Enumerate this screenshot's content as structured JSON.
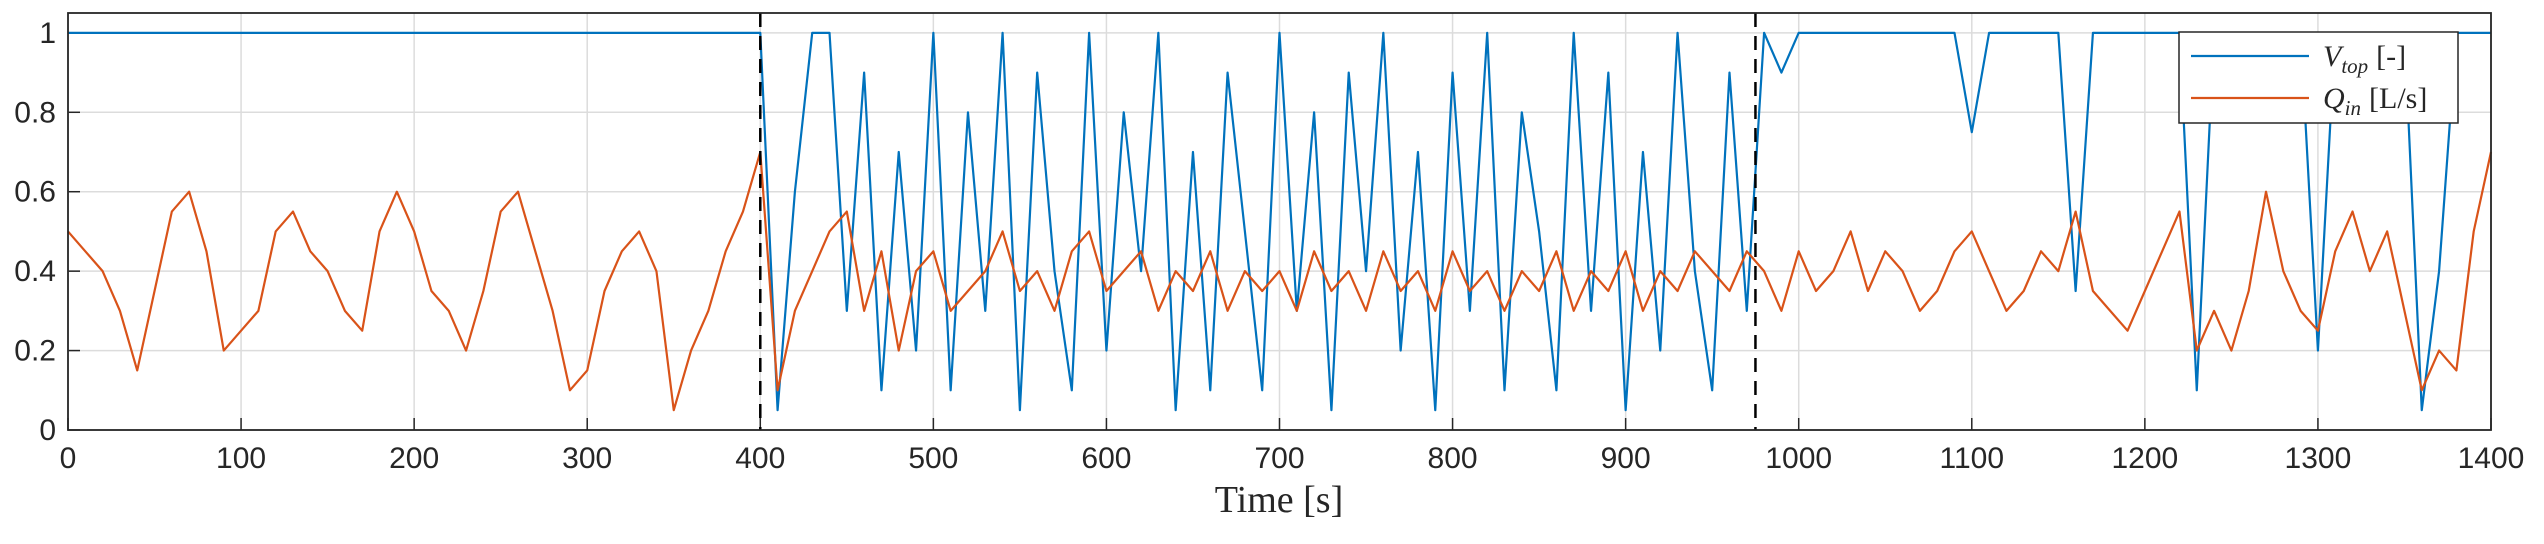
{
  "chart_data": {
    "type": "line",
    "xlabel": "Time [s]",
    "xlim": [
      0,
      1400
    ],
    "xticks": [
      0,
      100,
      200,
      300,
      400,
      500,
      600,
      700,
      800,
      900,
      1000,
      1100,
      1200,
      1300,
      1400
    ],
    "ylim": [
      0,
      1.05
    ],
    "yticks": [
      0,
      0.2,
      0.4,
      0.6,
      0.8,
      1
    ],
    "grid": true,
    "legend": "northeast",
    "vlines": [
      400,
      975
    ],
    "vline_color": "#000000",
    "x": [
      0,
      10,
      20,
      30,
      40,
      50,
      60,
      70,
      80,
      90,
      100,
      110,
      120,
      130,
      140,
      150,
      160,
      170,
      180,
      190,
      200,
      210,
      220,
      230,
      240,
      250,
      260,
      270,
      280,
      290,
      300,
      310,
      320,
      330,
      340,
      350,
      360,
      370,
      380,
      390,
      400,
      410,
      420,
      430,
      440,
      450,
      460,
      470,
      480,
      490,
      500,
      510,
      520,
      530,
      540,
      550,
      560,
      570,
      580,
      590,
      600,
      610,
      620,
      630,
      640,
      650,
      660,
      670,
      680,
      690,
      700,
      710,
      720,
      730,
      740,
      750,
      760,
      770,
      780,
      790,
      800,
      810,
      820,
      830,
      840,
      850,
      860,
      870,
      880,
      890,
      900,
      910,
      920,
      930,
      940,
      950,
      960,
      970,
      980,
      990,
      1000,
      1010,
      1020,
      1030,
      1040,
      1050,
      1060,
      1070,
      1080,
      1090,
      1100,
      1110,
      1120,
      1130,
      1140,
      1150,
      1160,
      1170,
      1180,
      1190,
      1200,
      1210,
      1220,
      1230,
      1240,
      1250,
      1260,
      1270,
      1280,
      1290,
      1300,
      1310,
      1320,
      1330,
      1340,
      1350,
      1360,
      1370,
      1380,
      1390,
      1400
    ],
    "series": [
      {
        "name": "V",
        "name_sub": "top",
        "unit": "[-]",
        "color": "#0072BD",
        "values": [
          1,
          1,
          1,
          1,
          1,
          1,
          1,
          1,
          1,
          1,
          1,
          1,
          1,
          1,
          1,
          1,
          1,
          1,
          1,
          1,
          1,
          1,
          1,
          1,
          1,
          1,
          1,
          1,
          1,
          1,
          1,
          1,
          1,
          1,
          1,
          1,
          1,
          1,
          1,
          1,
          1,
          0.05,
          0.6,
          1,
          1,
          0.3,
          0.9,
          0.1,
          0.7,
          0.2,
          1,
          0.1,
          0.8,
          0.3,
          1,
          0.05,
          0.9,
          0.4,
          0.1,
          1,
          0.2,
          0.8,
          0.4,
          1,
          0.05,
          0.7,
          0.1,
          0.9,
          0.5,
          0.1,
          1,
          0.3,
          0.8,
          0.05,
          0.9,
          0.4,
          1,
          0.2,
          0.7,
          0.05,
          0.9,
          0.3,
          1,
          0.1,
          0.8,
          0.5,
          0.1,
          1,
          0.3,
          0.9,
          0.05,
          0.7,
          0.2,
          1,
          0.4,
          0.1,
          0.9,
          0.3,
          1,
          0.9,
          1,
          1,
          1,
          1,
          1,
          1,
          1,
          1,
          1,
          1,
          0.75,
          1,
          1,
          1,
          1,
          1,
          0.35,
          1,
          1,
          1,
          1,
          1,
          1,
          0.1,
          1,
          1,
          1,
          1,
          1,
          1,
          0.2,
          1,
          1,
          1,
          1,
          1,
          0.05,
          0.4,
          1,
          1,
          1
        ]
      },
      {
        "name": "Q",
        "name_sub": "in",
        "unit": "[L/s]",
        "color": "#D95319",
        "values": [
          0.5,
          0.45,
          0.4,
          0.3,
          0.15,
          0.35,
          0.55,
          0.6,
          0.45,
          0.2,
          0.25,
          0.3,
          0.5,
          0.55,
          0.45,
          0.4,
          0.3,
          0.25,
          0.5,
          0.6,
          0.5,
          0.35,
          0.3,
          0.2,
          0.35,
          0.55,
          0.6,
          0.45,
          0.3,
          0.1,
          0.15,
          0.35,
          0.45,
          0.5,
          0.4,
          0.05,
          0.2,
          0.3,
          0.45,
          0.55,
          0.7,
          0.1,
          0.3,
          0.4,
          0.5,
          0.55,
          0.3,
          0.45,
          0.2,
          0.4,
          0.45,
          0.3,
          0.35,
          0.4,
          0.5,
          0.35,
          0.4,
          0.3,
          0.45,
          0.5,
          0.35,
          0.4,
          0.45,
          0.3,
          0.4,
          0.35,
          0.45,
          0.3,
          0.4,
          0.35,
          0.4,
          0.3,
          0.45,
          0.35,
          0.4,
          0.3,
          0.45,
          0.35,
          0.4,
          0.3,
          0.45,
          0.35,
          0.4,
          0.3,
          0.4,
          0.35,
          0.45,
          0.3,
          0.4,
          0.35,
          0.45,
          0.3,
          0.4,
          0.35,
          0.45,
          0.4,
          0.35,
          0.45,
          0.4,
          0.3,
          0.45,
          0.35,
          0.4,
          0.5,
          0.35,
          0.45,
          0.4,
          0.3,
          0.35,
          0.45,
          0.5,
          0.4,
          0.3,
          0.35,
          0.45,
          0.4,
          0.55,
          0.35,
          0.3,
          0.25,
          0.35,
          0.45,
          0.55,
          0.2,
          0.3,
          0.2,
          0.35,
          0.6,
          0.4,
          0.3,
          0.25,
          0.45,
          0.55,
          0.4,
          0.5,
          0.3,
          0.1,
          0.2,
          0.15,
          0.5,
          0.7
        ]
      }
    ]
  }
}
